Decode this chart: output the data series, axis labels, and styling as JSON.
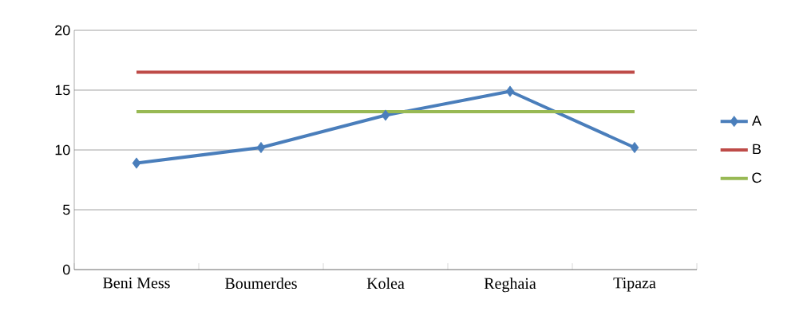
{
  "chart_data": {
    "type": "line",
    "categories": [
      "Beni Mess",
      "Boumerdes",
      "Kolea",
      "Reghaia",
      "Tipaza"
    ],
    "series": [
      {
        "name": "A",
        "color": "#4a7ebb",
        "marker": "diamond",
        "values": [
          8.9,
          10.2,
          12.9,
          14.9,
          10.2
        ]
      },
      {
        "name": "B",
        "color": "#be4b48",
        "marker": "none",
        "values": [
          16.5,
          16.5,
          16.5,
          16.5,
          16.5
        ]
      },
      {
        "name": "C",
        "color": "#98b954",
        "marker": "none",
        "values": [
          13.2,
          13.2,
          13.2,
          13.2,
          13.2
        ]
      }
    ],
    "ylim": [
      0,
      20
    ],
    "yticks": [
      0,
      5,
      10,
      15,
      20
    ],
    "grid": "y",
    "legend": "right"
  }
}
